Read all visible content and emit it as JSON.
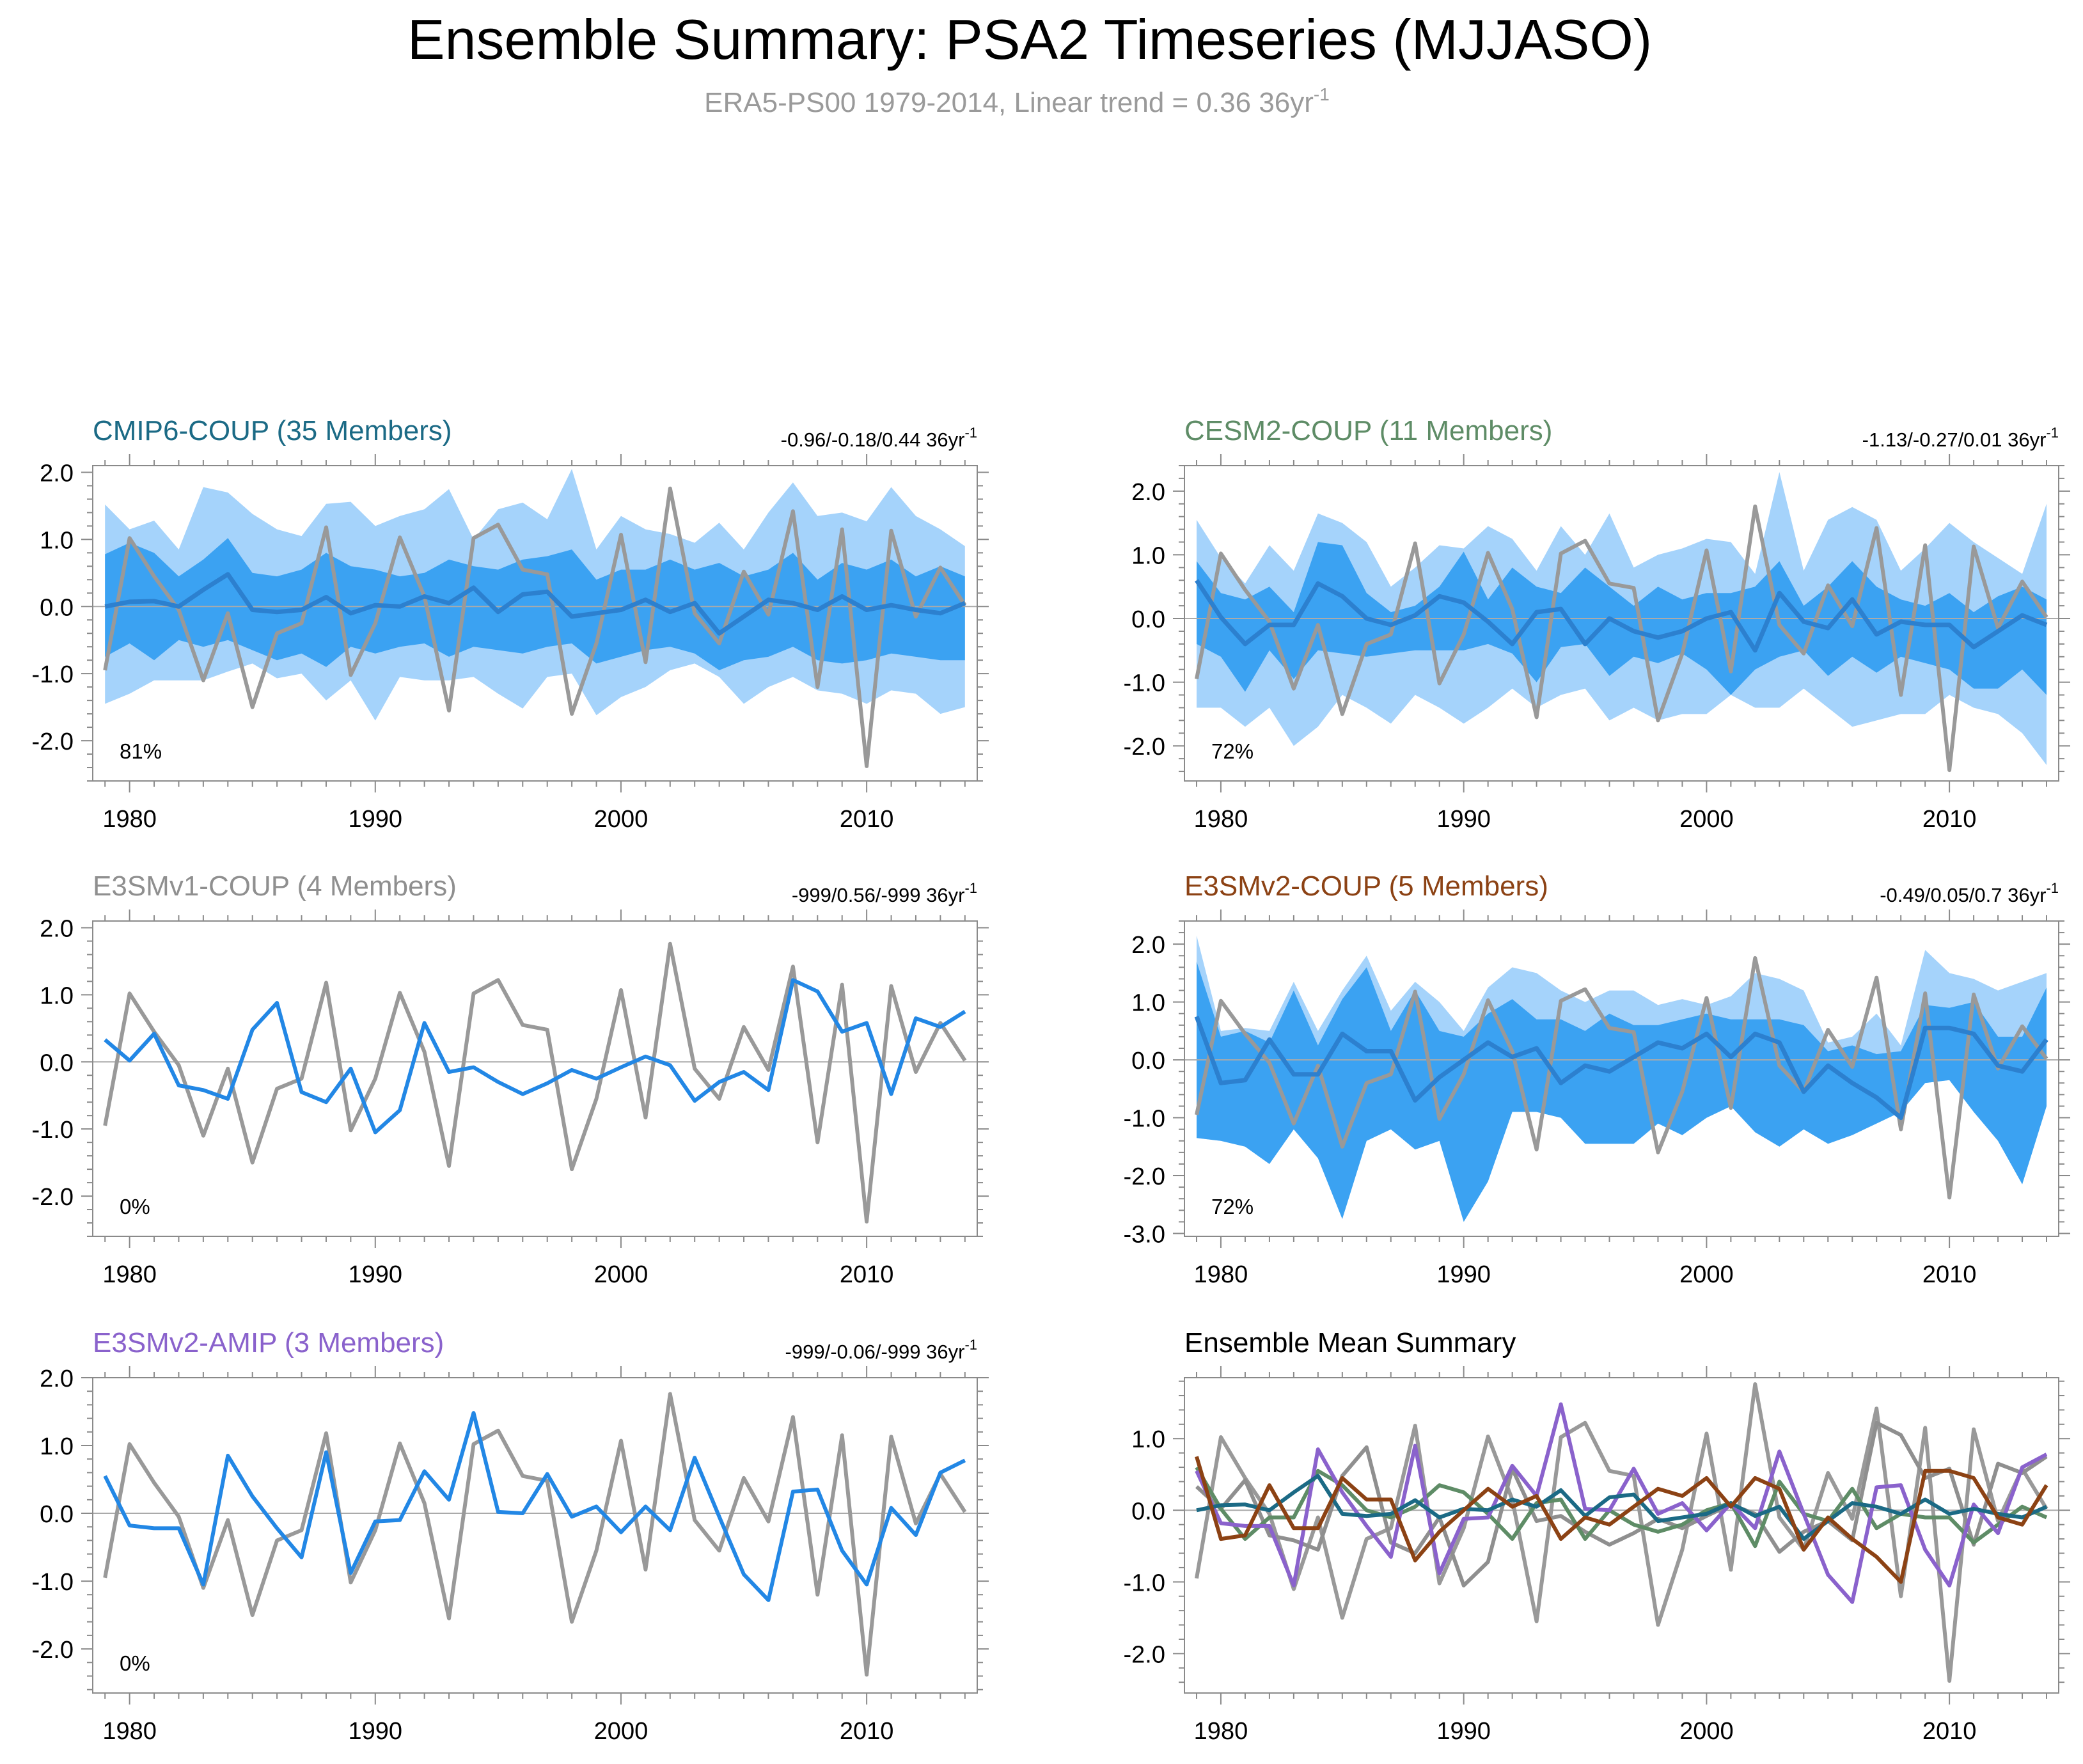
{
  "figure": {
    "title": "Ensemble Summary: PSA2 Timeseries (MJJASO)",
    "subtitle_main": "ERA5-PS00 1979-2014, Linear trend = 0.36 36yr",
    "subtitle_sup": "-1"
  },
  "colors": {
    "obs": "#999999",
    "band_outer": "#a5d3fb",
    "band_inner": "#3ba2f2",
    "ens_mean": "#2c80cf",
    "member_line": "#2287e5",
    "zero_line": "#aaaaaa",
    "cmip6": "#1b6a85",
    "cesm2": "#5e8c66",
    "e3smv1": "#8f8f8f",
    "e3smv2_coup": "#8c4214",
    "e3smv2_amip": "#8a62cc"
  },
  "chart_data": [
    {
      "id": "cmip6",
      "type": "area",
      "title": "CMIP6-COUP (35 Members)",
      "title_color": "#1b6a85",
      "trend_text": "-0.96/-0.18/0.44 36yr",
      "trend_sup": "-1",
      "annotation": "81%",
      "ylim": [
        -2.6,
        2.1
      ],
      "yticks": [
        2.0,
        1.0,
        0.0,
        -1.0,
        -2.0
      ],
      "ytick_labels": [
        "2.0",
        "1.0",
        "0.0",
        "-1.0",
        "-2.0"
      ],
      "xlim": [
        1978.5,
        2014.5
      ],
      "xticks": [
        1980,
        1990,
        2000,
        2010
      ],
      "xtick_labels": [
        "1980",
        "1990",
        "2000",
        "2010"
      ],
      "outer_hi": [
        1.52,
        1.15,
        1.28,
        0.85,
        1.78,
        1.7,
        1.38,
        1.15,
        1.05,
        1.53,
        1.56,
        1.2,
        1.35,
        1.45,
        1.75,
        1.0,
        1.45,
        1.55,
        1.3,
        2.05,
        0.85,
        1.35,
        1.15,
        1.08,
        0.95,
        1.25,
        0.85,
        1.4,
        1.85,
        1.35,
        1.4,
        1.27,
        1.78,
        1.35,
        1.15,
        0.9
      ],
      "outer_lo": [
        -1.45,
        -1.3,
        -1.1,
        -1.1,
        -1.1,
        -0.97,
        -0.85,
        -1.07,
        -1.0,
        -1.4,
        -1.1,
        -1.7,
        -1.05,
        -1.1,
        -1.1,
        -1.05,
        -1.3,
        -1.52,
        -1.05,
        -1.0,
        -1.62,
        -1.35,
        -1.2,
        -0.95,
        -0.85,
        -1.05,
        -1.45,
        -1.2,
        -1.05,
        -1.25,
        -1.3,
        -1.45,
        -1.25,
        -1.3,
        -1.6,
        -1.5
      ],
      "inner_hi": [
        0.78,
        0.95,
        0.8,
        0.45,
        0.7,
        1.02,
        0.5,
        0.45,
        0.55,
        0.8,
        0.6,
        0.55,
        0.45,
        0.5,
        0.7,
        0.6,
        0.55,
        0.7,
        0.75,
        0.85,
        0.4,
        0.55,
        0.55,
        0.7,
        0.55,
        0.65,
        0.45,
        0.55,
        0.8,
        0.4,
        0.65,
        0.55,
        0.7,
        0.45,
        0.6,
        0.45
      ],
      "inner_lo": [
        -0.75,
        -0.55,
        -0.8,
        -0.5,
        -0.6,
        -0.5,
        -0.65,
        -0.8,
        -0.7,
        -0.9,
        -0.6,
        -0.7,
        -0.6,
        -0.55,
        -0.75,
        -0.6,
        -0.65,
        -0.7,
        -0.6,
        -0.55,
        -0.85,
        -0.75,
        -0.65,
        -0.6,
        -0.7,
        -0.95,
        -0.8,
        -0.75,
        -0.6,
        -0.8,
        -0.85,
        -0.8,
        -0.7,
        -0.75,
        -0.8,
        -0.8
      ],
      "mean": [
        0.0,
        0.07,
        0.08,
        0.0,
        0.25,
        0.48,
        -0.05,
        -0.08,
        -0.05,
        0.14,
        -0.1,
        0.02,
        0.0,
        0.15,
        0.05,
        0.28,
        -0.08,
        0.18,
        0.22,
        -0.15,
        -0.1,
        -0.05,
        0.1,
        -0.08,
        0.05,
        -0.4,
        -0.15,
        0.1,
        0.05,
        -0.05,
        0.15,
        -0.05,
        0.02,
        -0.05,
        -0.1,
        0.05
      ]
    },
    {
      "id": "cesm2",
      "type": "area",
      "title": "CESM2-COUP (11 Members)",
      "title_color": "#5e8c66",
      "trend_text": "-1.13/-0.27/0.01 36yr",
      "trend_sup": "-1",
      "annotation": "72%",
      "ylim": [
        -2.55,
        2.4
      ],
      "yticks": [
        2.0,
        1.0,
        0.0,
        -1.0,
        -2.0
      ],
      "ytick_labels": [
        "2.0",
        "1.0",
        "0.0",
        "-1.0",
        "-2.0"
      ],
      "xlim": [
        1978.5,
        2014.5
      ],
      "xticks": [
        1980,
        1990,
        2000,
        2010
      ],
      "xtick_labels": [
        "1980",
        "1990",
        "2000",
        "2010"
      ],
      "outer_hi": [
        1.55,
        0.95,
        0.55,
        1.15,
        0.75,
        1.65,
        1.5,
        1.2,
        0.5,
        0.8,
        1.15,
        1.1,
        1.45,
        1.25,
        0.75,
        1.45,
        1.0,
        1.65,
        0.8,
        1.0,
        1.1,
        1.25,
        1.2,
        0.7,
        2.3,
        0.75,
        1.55,
        1.75,
        1.55,
        0.75,
        1.1,
        1.5,
        1.2,
        0.95,
        0.7,
        1.8
      ],
      "outer_lo": [
        -1.4,
        -1.4,
        -1.7,
        -1.4,
        -2.0,
        -1.7,
        -1.2,
        -1.4,
        -1.65,
        -1.2,
        -1.4,
        -1.65,
        -1.4,
        -1.1,
        -1.4,
        -1.2,
        -1.1,
        -1.6,
        -1.4,
        -1.6,
        -1.5,
        -1.5,
        -1.2,
        -1.4,
        -1.4,
        -1.1,
        -1.4,
        -1.7,
        -1.6,
        -1.5,
        -1.5,
        -1.2,
        -1.4,
        -1.5,
        -1.8,
        -2.3
      ],
      "inner_hi": [
        0.9,
        0.4,
        0.3,
        0.5,
        0.1,
        1.2,
        1.15,
        0.4,
        0.1,
        0.2,
        0.5,
        1.05,
        0.3,
        0.8,
        0.5,
        0.4,
        0.8,
        0.5,
        0.2,
        0.5,
        0.3,
        0.4,
        0.4,
        0.5,
        0.9,
        0.2,
        0.5,
        0.9,
        0.5,
        0.3,
        0.2,
        0.4,
        0.1,
        0.35,
        0.5,
        0.3
      ],
      "inner_lo": [
        -0.4,
        -0.6,
        -1.15,
        -0.5,
        -0.95,
        -0.5,
        -0.55,
        -0.6,
        -0.55,
        -0.5,
        -0.5,
        -0.5,
        -0.4,
        -0.55,
        -1.0,
        -0.45,
        -0.4,
        -0.9,
        -0.6,
        -0.7,
        -0.55,
        -0.8,
        -1.2,
        -0.8,
        -0.6,
        -0.5,
        -0.9,
        -0.6,
        -0.85,
        -0.6,
        -0.7,
        -0.8,
        -1.1,
        -1.1,
        -0.8,
        -1.2
      ],
      "mean": [
        0.6,
        0.02,
        -0.4,
        -0.1,
        -0.1,
        0.55,
        0.35,
        0.0,
        -0.1,
        0.05,
        0.35,
        0.25,
        -0.05,
        -0.4,
        0.1,
        0.15,
        -0.4,
        0.0,
        -0.2,
        -0.3,
        -0.2,
        0.0,
        0.1,
        -0.5,
        0.4,
        -0.05,
        -0.15,
        0.3,
        -0.25,
        -0.05,
        -0.1,
        -0.1,
        -0.45,
        -0.2,
        0.05,
        -0.1
      ]
    },
    {
      "id": "e3smv1",
      "type": "line",
      "title": "E3SMv1-COUP (4 Members)",
      "title_color": "#8f8f8f",
      "trend_text": "-999/0.56/-999 36yr",
      "trend_sup": "-1",
      "annotation": "0%",
      "ylim": [
        -2.6,
        2.1
      ],
      "yticks": [
        2.0,
        1.0,
        0.0,
        -1.0,
        -2.0
      ],
      "ytick_labels": [
        "2.0",
        "1.0",
        "0.0",
        "-1.0",
        "-2.0"
      ],
      "xlim": [
        1978.5,
        2014.5
      ],
      "xticks": [
        1980,
        1990,
        2000,
        2010
      ],
      "xtick_labels": [
        "1980",
        "1990",
        "2000",
        "2010"
      ],
      "mean": [
        0.33,
        0.02,
        0.42,
        -0.35,
        -0.42,
        -0.55,
        0.48,
        0.88,
        -0.45,
        -0.6,
        -0.1,
        -1.05,
        -0.72,
        0.58,
        -0.15,
        -0.08,
        -0.3,
        -0.48,
        -0.32,
        -0.12,
        -0.25,
        -0.08,
        0.08,
        -0.05,
        -0.58,
        -0.3,
        -0.15,
        -0.42,
        1.22,
        1.05,
        0.45,
        0.58,
        -0.48,
        0.65,
        0.52,
        0.75
      ]
    },
    {
      "id": "e3smv2_coup",
      "type": "area",
      "title": "E3SMv2-COUP (5 Members)",
      "title_color": "#8c4214",
      "trend_text": "-0.49/0.05/0.7 36yr",
      "trend_sup": "-1",
      "annotation": "72%",
      "ylim": [
        -3.05,
        2.4
      ],
      "yticks": [
        2.0,
        1.0,
        0.0,
        -1.0,
        -2.0,
        -3.0
      ],
      "ytick_labels": [
        "2.0",
        "1.0",
        "0.0",
        "-1.0",
        "-2.0",
        "-3.0"
      ],
      "xlim": [
        1978.5,
        2014.5
      ],
      "xticks": [
        1980,
        1990,
        2000,
        2010
      ],
      "xtick_labels": [
        "1980",
        "1990",
        "2000",
        "2010"
      ],
      "outer_hi": [
        2.15,
        0.5,
        0.55,
        0.5,
        1.35,
        0.5,
        1.2,
        1.8,
        0.85,
        1.35,
        1.0,
        0.5,
        1.25,
        1.6,
        1.5,
        1.2,
        1.0,
        1.2,
        1.2,
        0.95,
        1.05,
        0.95,
        1.1,
        1.5,
        1.4,
        1.2,
        0.3,
        0.4,
        0.8,
        0.25,
        1.9,
        1.5,
        1.4,
        1.2,
        1.35,
        1.5
      ],
      "outer_lo": [
        -1.35,
        -1.4,
        -1.5,
        -1.8,
        -1.2,
        -1.7,
        -2.75,
        -1.4,
        -1.2,
        -1.55,
        -1.4,
        -2.8,
        -2.1,
        -0.9,
        -0.9,
        -1.0,
        -1.45,
        -1.45,
        -1.45,
        -1.1,
        -1.3,
        -1.0,
        -0.8,
        -1.25,
        -1.5,
        -1.2,
        -1.45,
        -1.3,
        -1.1,
        -0.9,
        -0.4,
        -0.35,
        -0.9,
        -1.4,
        -2.15,
        -0.8
      ],
      "inner_hi": [
        1.7,
        0.4,
        0.5,
        0.3,
        1.2,
        0.25,
        1.05,
        1.6,
        0.5,
        1.2,
        0.5,
        0.4,
        0.8,
        1.05,
        0.7,
        0.7,
        0.5,
        0.8,
        0.6,
        0.6,
        0.7,
        0.8,
        0.7,
        0.7,
        0.7,
        0.6,
        0.15,
        0.25,
        0.1,
        0.15,
        0.95,
        0.9,
        1.0,
        0.4,
        0.4,
        1.25
      ],
      "inner_lo": [
        -1.35,
        -1.4,
        -1.5,
        -1.8,
        -1.2,
        -1.7,
        -2.75,
        -1.4,
        -1.2,
        -1.55,
        -1.4,
        -2.8,
        -2.1,
        -0.9,
        -0.9,
        -1.0,
        -1.45,
        -1.45,
        -1.45,
        -1.1,
        -1.3,
        -1.0,
        -0.8,
        -1.25,
        -1.5,
        -1.2,
        -1.45,
        -1.3,
        -1.1,
        -0.9,
        -0.4,
        -0.35,
        -0.9,
        -1.4,
        -2.15,
        -0.8
      ],
      "mean": [
        0.75,
        -0.4,
        -0.35,
        0.35,
        -0.25,
        -0.25,
        0.45,
        0.15,
        0.15,
        -0.7,
        -0.3,
        0.0,
        0.3,
        0.05,
        0.2,
        -0.4,
        -0.1,
        -0.2,
        0.05,
        0.3,
        0.2,
        0.45,
        0.05,
        0.45,
        0.3,
        -0.55,
        -0.1,
        -0.4,
        -0.65,
        -1.0,
        0.55,
        0.55,
        0.45,
        -0.1,
        -0.2,
        0.35
      ]
    },
    {
      "id": "e3smv2_amip",
      "type": "line",
      "title": "E3SMv2-AMIP (3 Members)",
      "title_color": "#8a62cc",
      "trend_text": "-999/-0.06/-999 36yr",
      "trend_sup": "-1",
      "annotation": "0%",
      "ylim": [
        -2.65,
        2.0
      ],
      "yticks": [
        2.0,
        1.0,
        0.0,
        -1.0,
        -2.0
      ],
      "ytick_labels": [
        "2.0",
        "1.0",
        "0.0",
        "-1.0",
        "-2.0"
      ],
      "xlim": [
        1978.5,
        2014.5
      ],
      "xticks": [
        1980,
        1990,
        2000,
        2010
      ],
      "xtick_labels": [
        "1980",
        "1990",
        "2000",
        "2010"
      ],
      "mean": [
        0.55,
        -0.18,
        -0.22,
        -0.22,
        -1.05,
        0.85,
        0.25,
        -0.22,
        -0.65,
        0.9,
        -0.88,
        -0.12,
        -0.1,
        0.62,
        0.2,
        1.48,
        0.02,
        0.0,
        0.58,
        -0.05,
        0.1,
        -0.28,
        0.1,
        -0.25,
        0.82,
        -0.05,
        -0.9,
        -1.28,
        0.32,
        0.35,
        -0.55,
        -1.05,
        0.08,
        -0.32,
        0.6,
        0.78
      ]
    },
    {
      "id": "summary",
      "type": "line",
      "title": "Ensemble Mean Summary",
      "title_color": "#000000",
      "ylim": [
        -2.55,
        1.85
      ],
      "yticks": [
        1.0,
        0.0,
        -1.0,
        -2.0
      ],
      "ytick_labels": [
        "1.0",
        "0.0",
        "-1.0",
        "-2.0"
      ],
      "xlim": [
        1978.5,
        2014.5
      ],
      "xticks": [
        1980,
        1990,
        2000,
        2010
      ],
      "xtick_labels": [
        "1980",
        "1990",
        "2000",
        "2010"
      ],
      "series_ids": [
        "e3smv1",
        "cesm2",
        "e3smv2_amip",
        "cmip6",
        "e3smv2_coup"
      ]
    }
  ],
  "obs_series": {
    "name": "ERA5-PS00",
    "years": [
      1979,
      1980,
      1981,
      1982,
      1983,
      1984,
      1985,
      1986,
      1987,
      1988,
      1989,
      1990,
      1991,
      1992,
      1993,
      1994,
      1995,
      1996,
      1997,
      1998,
      1999,
      2000,
      2001,
      2002,
      2003,
      2004,
      2005,
      2006,
      2007,
      2008,
      2009,
      2010,
      2011,
      2012,
      2013,
      2014
    ],
    "values": [
      -0.95,
      1.02,
      0.45,
      -0.05,
      -1.1,
      -0.1,
      -1.5,
      -0.4,
      -0.25,
      1.18,
      -1.02,
      -0.25,
      1.03,
      0.15,
      -1.55,
      1.02,
      1.22,
      0.55,
      0.48,
      -1.6,
      -0.55,
      1.07,
      -0.83,
      1.76,
      -0.1,
      -0.55,
      0.52,
      -0.12,
      1.42,
      -1.2,
      1.15,
      -2.38,
      1.13,
      -0.15,
      0.58,
      0.02
    ]
  }
}
